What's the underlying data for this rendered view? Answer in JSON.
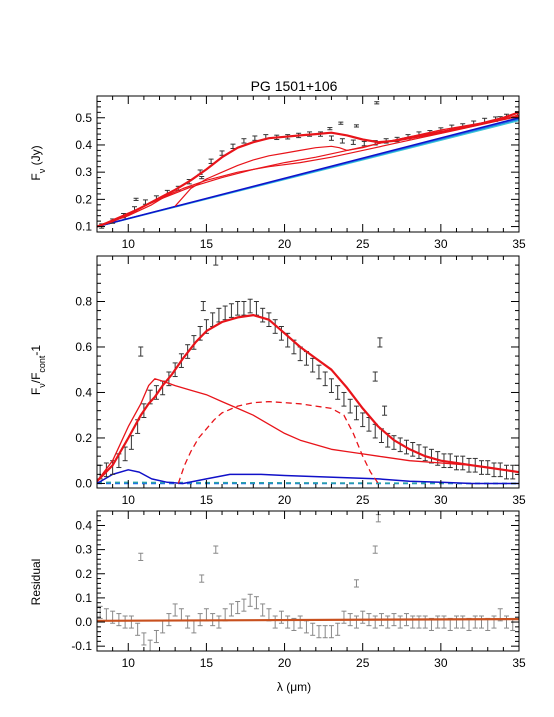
{
  "figure": {
    "title": "PG 1501+106",
    "x_axis_title": "λ (μm)",
    "x_ticks": [
      "10",
      "15",
      "20",
      "25",
      "30",
      "35"
    ]
  },
  "chart_data": [
    {
      "type": "line",
      "panel": "top",
      "ylabel": "Fν (Jy)",
      "xlim": [
        8,
        35
      ],
      "ylim": [
        0.08,
        0.58
      ],
      "y_ticks": [
        "0.1",
        "0.2",
        "0.3",
        "0.4",
        "0.5"
      ],
      "y_tick_values": [
        0.1,
        0.2,
        0.3,
        0.4,
        0.5
      ],
      "observed": {
        "x": [
          8.3,
          9.0,
          9.7,
          10.4,
          11.1,
          11.8,
          12.5,
          13.2,
          13.9,
          14.6,
          15.3,
          16.0,
          16.7,
          17.4,
          18.1,
          18.8,
          19.5,
          20.2,
          20.9,
          21.6,
          22.3,
          23.0,
          23.7,
          24.4,
          25.1,
          25.8,
          26.5,
          27.2,
          27.9,
          28.6,
          29.3,
          30.0,
          30.7,
          31.4,
          32.1,
          32.8,
          33.5,
          34.2,
          34.9
        ],
        "y": [
          0.102,
          0.12,
          0.14,
          0.165,
          0.19,
          0.205,
          0.225,
          0.24,
          0.265,
          0.3,
          0.34,
          0.37,
          0.395,
          0.415,
          0.425,
          0.43,
          0.428,
          0.43,
          0.435,
          0.44,
          0.44,
          0.425,
          0.415,
          0.41,
          0.405,
          0.408,
          0.415,
          0.42,
          0.43,
          0.44,
          0.445,
          0.455,
          0.465,
          0.47,
          0.48,
          0.49,
          0.495,
          0.505,
          0.515
        ],
        "err": 0.008
      },
      "outliers": {
        "x": [
          10.5,
          14.7,
          22.9,
          23.6,
          24.6,
          25.9,
          26.2,
          33.8
        ],
        "y": [
          0.2,
          0.28,
          0.46,
          0.48,
          0.47,
          0.555,
          0.59,
          0.5
        ],
        "err": 0.004
      },
      "model_total": {
        "x": [
          8.0,
          9.0,
          10.0,
          11.0,
          12.0,
          13.0,
          14.0,
          15.0,
          16.0,
          17.0,
          18.0,
          19.0,
          20.0,
          21.0,
          22.0,
          23.0,
          24.0,
          25.0,
          26.0,
          27.0,
          28.0,
          29.0,
          30.0,
          31.0,
          32.0,
          33.0,
          34.0,
          35.0
        ],
        "y": [
          0.1,
          0.12,
          0.145,
          0.175,
          0.205,
          0.235,
          0.27,
          0.31,
          0.355,
          0.39,
          0.41,
          0.425,
          0.43,
          0.435,
          0.44,
          0.445,
          0.435,
          0.42,
          0.41,
          0.415,
          0.425,
          0.435,
          0.445,
          0.46,
          0.47,
          0.485,
          0.5,
          0.52
        ]
      },
      "model_component_a": {
        "x": [
          8.0,
          10.0,
          11.5,
          12.5,
          13.5,
          15.0,
          17.0,
          19.0,
          21.0,
          23.0,
          25.0,
          27.0,
          29.0,
          31.0,
          33.0,
          35.0
        ],
        "y": [
          0.1,
          0.14,
          0.18,
          0.215,
          0.24,
          0.27,
          0.3,
          0.32,
          0.335,
          0.355,
          0.38,
          0.405,
          0.43,
          0.455,
          0.48,
          0.505
        ]
      },
      "model_component_b": {
        "x": [
          13.0,
          14.0,
          15.0,
          16.0,
          17.0,
          18.0,
          19.0,
          20.0,
          21.0,
          22.0,
          23.0,
          23.5,
          24.0,
          25.0,
          26.0,
          28.0,
          30.0,
          32.0,
          35.0
        ],
        "y": [
          0.175,
          0.24,
          0.275,
          0.3,
          0.325,
          0.345,
          0.36,
          0.37,
          0.38,
          0.39,
          0.395,
          0.39,
          0.38,
          0.39,
          0.405,
          0.43,
          0.455,
          0.475,
          0.505
        ]
      },
      "model_component_c": {
        "x": [
          8.0,
          10.0,
          12.0,
          14.0,
          16.0,
          18.0,
          20.0,
          22.0,
          24.0,
          26.0,
          28.0,
          30.0,
          32.0,
          34.0,
          35.0
        ],
        "y": [
          0.1,
          0.15,
          0.2,
          0.245,
          0.28,
          0.31,
          0.335,
          0.355,
          0.38,
          0.405,
          0.43,
          0.45,
          0.47,
          0.495,
          0.51
        ]
      },
      "continuum_dark": {
        "x": [
          8.0,
          35.0
        ],
        "y": [
          0.1,
          0.5
        ]
      },
      "continuum_mid": {
        "x": [
          8.0,
          35.0
        ],
        "y": [
          0.1,
          0.495
        ]
      },
      "continuum_light": {
        "x": [
          8.0,
          35.0
        ],
        "y": [
          0.1,
          0.49
        ]
      }
    },
    {
      "type": "line",
      "panel": "middle",
      "ylabel": "Fν/Fcont-1",
      "xlim": [
        8,
        35
      ],
      "ylim": [
        -0.02,
        1.0
      ],
      "y_ticks": [
        "0.0",
        "0.2",
        "0.4",
        "0.6",
        "0.8"
      ],
      "y_tick_values": [
        0.0,
        0.2,
        0.4,
        0.6,
        0.8
      ],
      "observed": {
        "x": [
          8.2,
          8.6,
          9.0,
          9.4,
          9.8,
          10.2,
          10.6,
          11.0,
          11.4,
          11.8,
          12.2,
          12.6,
          13.0,
          13.4,
          13.8,
          14.2,
          14.6,
          15.0,
          15.4,
          15.8,
          16.2,
          16.6,
          17.0,
          17.4,
          17.8,
          18.2,
          18.6,
          19.0,
          19.4,
          19.8,
          20.2,
          20.6,
          21.0,
          21.4,
          21.8,
          22.2,
          22.6,
          23.0,
          23.4,
          23.8,
          24.2,
          24.6,
          25.0,
          25.4,
          25.8,
          26.2,
          26.6,
          27.0,
          27.4,
          27.8,
          28.2,
          28.6,
          29.0,
          29.4,
          29.8,
          30.2,
          30.6,
          31.0,
          31.4,
          31.8,
          32.2,
          32.6,
          33.0,
          33.4,
          33.8,
          34.2,
          34.6
        ],
        "y": [
          0.05,
          0.06,
          0.07,
          0.1,
          0.13,
          0.18,
          0.25,
          0.32,
          0.38,
          0.4,
          0.42,
          0.46,
          0.5,
          0.54,
          0.58,
          0.62,
          0.66,
          0.69,
          0.72,
          0.74,
          0.75,
          0.76,
          0.77,
          0.77,
          0.78,
          0.77,
          0.74,
          0.72,
          0.69,
          0.66,
          0.63,
          0.6,
          0.57,
          0.55,
          0.52,
          0.49,
          0.46,
          0.43,
          0.4,
          0.37,
          0.34,
          0.31,
          0.28,
          0.26,
          0.23,
          0.21,
          0.19,
          0.18,
          0.17,
          0.16,
          0.15,
          0.14,
          0.13,
          0.12,
          0.11,
          0.1,
          0.1,
          0.09,
          0.09,
          0.08,
          0.08,
          0.07,
          0.07,
          0.06,
          0.06,
          0.05,
          0.05
        ],
        "err": 0.03
      },
      "outliers": {
        "x": [
          10.8,
          14.8,
          15.6,
          25.8,
          26.1,
          26.4
        ],
        "y": [
          0.58,
          0.78,
          0.98,
          0.47,
          0.62,
          0.32
        ],
        "err": 0.02
      },
      "model_total": {
        "x": [
          8.0,
          9.0,
          10.0,
          10.8,
          11.3,
          11.7,
          12.2,
          12.8,
          13.5,
          14.3,
          15.0,
          16.0,
          17.0,
          18.0,
          19.0,
          20.0,
          21.0,
          22.0,
          23.0,
          24.0,
          25.0,
          26.0,
          27.0,
          28.0,
          29.0,
          30.0,
          31.0,
          32.0,
          33.0,
          34.0,
          35.0
        ],
        "y": [
          0.01,
          0.08,
          0.2,
          0.3,
          0.35,
          0.38,
          0.43,
          0.48,
          0.55,
          0.62,
          0.67,
          0.71,
          0.73,
          0.74,
          0.72,
          0.66,
          0.6,
          0.55,
          0.5,
          0.42,
          0.33,
          0.25,
          0.19,
          0.15,
          0.12,
          0.1,
          0.09,
          0.08,
          0.07,
          0.06,
          0.05
        ]
      },
      "pah_component": {
        "x": [
          8.0,
          9.0,
          10.0,
          10.8,
          11.3,
          11.7,
          12.2,
          13.0,
          14.0,
          15.0,
          16.0,
          17.0,
          18.0,
          19.0,
          20.0,
          21.0,
          22.0,
          23.0,
          24.0,
          25.0,
          26.0,
          28.0,
          30.0,
          32.0,
          34.0,
          35.0
        ],
        "y": [
          0.01,
          0.1,
          0.25,
          0.35,
          0.43,
          0.46,
          0.45,
          0.43,
          0.41,
          0.39,
          0.36,
          0.33,
          0.3,
          0.26,
          0.22,
          0.19,
          0.17,
          0.15,
          0.14,
          0.13,
          0.12,
          0.1,
          0.09,
          0.08,
          0.06,
          0.05
        ]
      },
      "silicate_component": {
        "x": [
          13.2,
          13.6,
          14.0,
          14.5,
          15.0,
          15.5,
          16.0,
          17.0,
          18.0,
          19.0,
          20.0,
          21.0,
          22.0,
          23.0,
          23.8,
          24.4,
          25.0,
          25.5,
          26.0
        ],
        "y": [
          0.0,
          0.08,
          0.14,
          0.2,
          0.24,
          0.28,
          0.31,
          0.34,
          0.355,
          0.36,
          0.355,
          0.35,
          0.34,
          0.33,
          0.3,
          0.22,
          0.12,
          0.05,
          0.0
        ]
      },
      "blue_component": {
        "x": [
          8.0,
          9.0,
          10.0,
          10.7,
          11.5,
          12.5,
          13.5,
          15.0,
          16.5,
          17.5,
          18.5,
          20.0,
          22.0,
          24.0,
          26.0,
          28.0,
          30.0,
          32.0,
          34.0,
          35.0
        ],
        "y": [
          0.0,
          0.04,
          0.06,
          0.05,
          0.02,
          0.005,
          0.0,
          0.02,
          0.04,
          0.04,
          0.04,
          0.035,
          0.03,
          0.025,
          0.02,
          0.01,
          0.005,
          0.0,
          0.0,
          0.0
        ]
      },
      "dashed_baseline_a": {
        "x": [
          8.0,
          35.0
        ],
        "y": [
          0.005,
          0.0
        ]
      },
      "dashed_baseline_b": {
        "x": [
          8.0,
          35.0
        ],
        "y": [
          0.0,
          0.0
        ]
      }
    },
    {
      "type": "scatter",
      "panel": "bottom",
      "ylabel": "Residual",
      "xlim": [
        8,
        35
      ],
      "ylim": [
        -0.12,
        0.46
      ],
      "y_ticks": [
        "-0.1",
        "0.0",
        "0.1",
        "0.2",
        "0.3",
        "0.4"
      ],
      "y_tick_values": [
        -0.1,
        0.0,
        0.1,
        0.2,
        0.3,
        0.4
      ],
      "residuals": {
        "x": [
          8.2,
          8.6,
          9.0,
          9.4,
          9.8,
          10.2,
          10.6,
          11.0,
          11.4,
          11.8,
          12.2,
          12.6,
          13.0,
          13.4,
          13.8,
          14.2,
          14.6,
          15.0,
          15.4,
          15.8,
          16.2,
          16.6,
          17.0,
          17.4,
          17.8,
          18.2,
          18.6,
          19.0,
          19.4,
          19.8,
          20.2,
          20.6,
          21.0,
          21.4,
          21.8,
          22.2,
          22.6,
          23.0,
          23.4,
          23.8,
          24.2,
          24.6,
          25.0,
          25.4,
          25.8,
          26.2,
          26.6,
          27.0,
          27.4,
          27.8,
          28.2,
          28.6,
          29.0,
          29.4,
          29.8,
          30.2,
          30.6,
          31.0,
          31.4,
          31.8,
          32.2,
          32.6,
          33.0,
          33.4,
          33.8,
          34.2,
          34.6
        ],
        "y": [
          0.04,
          0.03,
          0.02,
          0.01,
          0.0,
          0.0,
          -0.03,
          -0.07,
          -0.1,
          -0.06,
          -0.02,
          0.01,
          0.05,
          0.03,
          0.0,
          -0.02,
          0.01,
          0.03,
          0.01,
          0.0,
          0.03,
          0.05,
          0.06,
          0.07,
          0.09,
          0.08,
          0.05,
          0.03,
          0.0,
          0.02,
          0.0,
          -0.01,
          0.0,
          -0.02,
          -0.03,
          -0.04,
          -0.04,
          -0.04,
          -0.03,
          0.02,
          0.01,
          0.0,
          0.02,
          0.01,
          0.0,
          0.01,
          0.0,
          0.01,
          0.0,
          0.01,
          0.0,
          0.0,
          0.0,
          -0.01,
          0.0,
          0.0,
          -0.01,
          0.0,
          0.0,
          -0.01,
          0.0,
          0.0,
          -0.01,
          0.0,
          0.03,
          0.0,
          -0.01
        ],
        "err": 0.025
      },
      "outliers": {
        "x": [
          10.8,
          14.7,
          15.6,
          24.6,
          25.8,
          26.0
        ],
        "y": [
          0.27,
          0.18,
          0.3,
          0.16,
          0.3,
          0.43
        ],
        "err": 0.015
      },
      "zero_line": {
        "x": [
          8.0,
          35.0
        ],
        "y": [
          0.005,
          0.012
        ]
      }
    }
  ],
  "colors": {
    "data": "#333333",
    "residual_data": "#888888",
    "model_red": "#e8141a",
    "blue_dark": "#1010c8",
    "blue_mid": "#1e6ee8",
    "cyan": "#39c7d6",
    "dashed_teal": "#2aa3a8",
    "residual_line": "#c8501e",
    "axis": "#000000"
  }
}
